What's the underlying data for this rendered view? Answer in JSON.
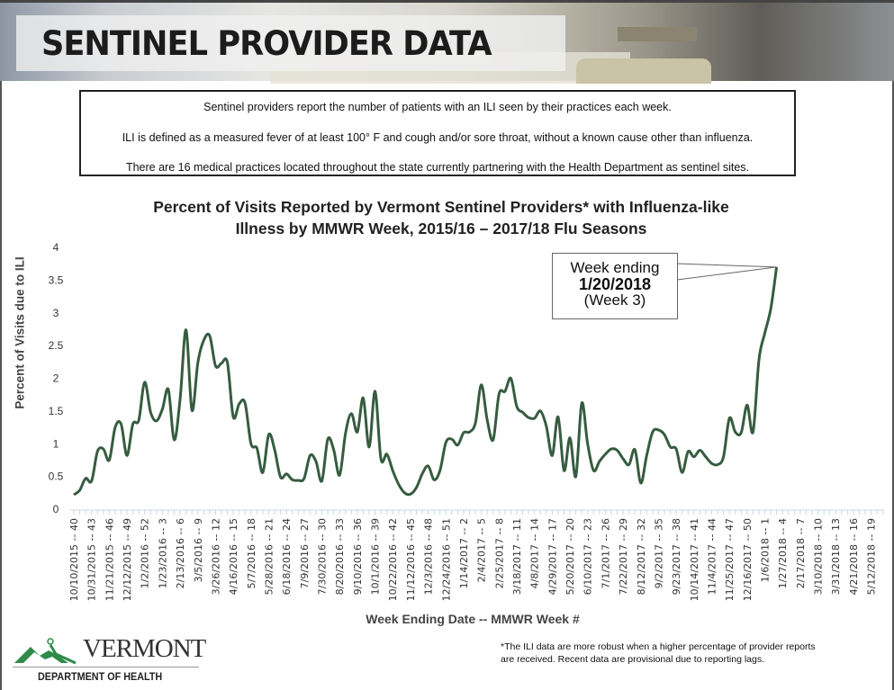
{
  "header": {
    "title": "SENTINEL PROVIDER DATA"
  },
  "info": {
    "lines": [
      "Sentinel providers report the number of patients with an ILI seen by their practices each week.",
      "ILI is defined as a measured fever of at least 100° F and cough and/or sore throat, without a known cause other than influenza.",
      "There are 16 medical practices located throughout the state currently partnering with the Health Department as sentinel sites."
    ]
  },
  "chart_data": {
    "type": "line",
    "title_line1": "Percent of Visits Reported by Vermont Sentinel Providers* with Influenza-like",
    "title_line2": "Illness by MMWR Week, 2015/16 – 2017/18 Flu Seasons",
    "xlabel": "Week Ending Date -- MMWR Week #",
    "ylabel": "Percent of Visits due to ILI",
    "ylim": [
      0,
      4
    ],
    "yticks": [
      "0",
      "0.5",
      "1",
      "1.5",
      "2",
      "2.5",
      "3",
      "3.5",
      "4"
    ],
    "xlim": [
      "10/10/2015",
      "5/19/2018"
    ],
    "grid": false,
    "line_color": "#365c40",
    "xtick_labels": [
      "10/10/2015 -- 40",
      "10/31/2015 -- 43",
      "11/21/2015 -- 46",
      "12/12/2015 -- 49",
      "1/2/2016 -- 52",
      "1/23/2016 -- 3",
      "2/13/2016 -- 6",
      "3/5/2016 -- 9",
      "3/26/2016 -- 12",
      "4/16/2016 -- 15",
      "5/7/2016 -- 18",
      "5/28/2016 -- 21",
      "6/18/2016 -- 24",
      "7/9/2016 -- 27",
      "7/30/2016 -- 30",
      "8/20/2016 -- 33",
      "9/10/2016 -- 36",
      "10/1/2016 -- 39",
      "10/22/2016 -- 42",
      "11/12/2016 -- 45",
      "12/3/2016 -- 48",
      "12/24/2016 -- 51",
      "1/14/2017 -- 2",
      "2/4/2017 -- 5",
      "2/25/2017 -- 8",
      "3/18/2017 -- 11",
      "4/8/2017 -- 14",
      "4/29/2017 -- 17",
      "5/20/2017 -- 20",
      "6/10/2017 -- 23",
      "7/1/2017 -- 26",
      "7/22/2017 -- 29",
      "8/12/2017 -- 32",
      "9/2/2017 -- 35",
      "9/23/2017 -- 38",
      "10/14/2017 -- 41",
      "11/4/2017 -- 44",
      "11/25/2017 -- 47",
      "12/16/2017 -- 50",
      "1/6/2018 -- 1",
      "1/27/2018 -- 4",
      "2/17/2018 -- 7",
      "3/10/2018 -- 10",
      "3/31/2018 -- 13",
      "4/21/2018 -- 16",
      "5/12/2018 -- 19"
    ],
    "x": [
      "10/10/2015",
      "10/17/2015",
      "10/24/2015",
      "10/31/2015",
      "11/7/2015",
      "11/14/2015",
      "11/21/2015",
      "11/28/2015",
      "12/5/2015",
      "12/12/2015",
      "12/19/2015",
      "12/26/2015",
      "1/2/2016",
      "1/9/2016",
      "1/16/2016",
      "1/23/2016",
      "1/30/2016",
      "2/6/2016",
      "2/13/2016",
      "2/20/2016",
      "2/27/2016",
      "3/5/2016",
      "3/12/2016",
      "3/19/2016",
      "3/26/2016",
      "4/2/2016",
      "4/9/2016",
      "4/16/2016",
      "4/23/2016",
      "4/30/2016",
      "5/7/2016",
      "5/14/2016",
      "5/21/2016",
      "5/28/2016",
      "6/4/2016",
      "6/11/2016",
      "6/18/2016",
      "6/25/2016",
      "7/2/2016",
      "7/9/2016",
      "7/16/2016",
      "7/23/2016",
      "7/30/2016",
      "8/6/2016",
      "8/13/2016",
      "8/20/2016",
      "8/27/2016",
      "9/3/2016",
      "9/10/2016",
      "9/17/2016",
      "9/24/2016",
      "10/1/2016",
      "10/8/2016",
      "10/15/2016",
      "10/22/2016",
      "10/29/2016",
      "11/5/2016",
      "11/12/2016",
      "11/19/2016",
      "11/26/2016",
      "12/3/2016",
      "12/10/2016",
      "12/17/2016",
      "12/24/2016",
      "12/31/2016",
      "1/7/2017",
      "1/14/2017",
      "1/21/2017",
      "1/28/2017",
      "2/4/2017",
      "2/11/2017",
      "2/18/2017",
      "2/25/2017",
      "3/4/2017",
      "3/11/2017",
      "3/18/2017",
      "3/25/2017",
      "4/1/2017",
      "4/8/2017",
      "4/15/2017",
      "4/22/2017",
      "4/29/2017",
      "5/6/2017",
      "5/13/2017",
      "5/20/2017",
      "5/27/2017",
      "6/3/2017",
      "6/10/2017",
      "6/17/2017",
      "6/24/2017",
      "7/1/2017",
      "7/8/2017",
      "7/15/2017",
      "7/22/2017",
      "7/29/2017",
      "8/5/2017",
      "8/12/2017",
      "8/19/2017",
      "8/26/2017",
      "9/2/2017",
      "9/9/2017",
      "9/16/2017",
      "9/23/2017",
      "9/30/2017",
      "10/7/2017",
      "10/14/2017",
      "10/21/2017",
      "10/28/2017",
      "11/4/2017",
      "11/11/2017",
      "11/18/2017",
      "11/25/2017",
      "12/2/2017",
      "12/9/2017",
      "12/16/2017",
      "12/23/2017",
      "12/30/2017",
      "1/6/2018",
      "1/13/2018",
      "1/20/2018"
    ],
    "values": [
      0.22,
      0.29,
      0.47,
      0.43,
      0.88,
      0.92,
      0.75,
      1.25,
      1.3,
      0.82,
      1.3,
      1.36,
      1.94,
      1.48,
      1.35,
      1.53,
      1.83,
      1.06,
      1.69,
      2.74,
      1.51,
      2.24,
      2.58,
      2.65,
      2.19,
      2.23,
      2.24,
      1.41,
      1.61,
      1.62,
      1.0,
      0.93,
      0.56,
      1.14,
      0.91,
      0.49,
      0.54,
      0.45,
      0.44,
      0.47,
      0.82,
      0.73,
      0.43,
      1.07,
      0.91,
      0.52,
      1.16,
      1.46,
      1.18,
      1.7,
      0.95,
      1.8,
      0.77,
      0.84,
      0.59,
      0.38,
      0.25,
      0.23,
      0.33,
      0.54,
      0.66,
      0.45,
      0.59,
      1.02,
      1.07,
      0.98,
      1.17,
      1.18,
      1.32,
      1.9,
      1.36,
      1.06,
      1.76,
      1.8,
      2.0,
      1.57,
      1.48,
      1.4,
      1.39,
      1.5,
      1.27,
      0.82,
      1.41,
      0.59,
      1.09,
      0.5,
      1.62,
      1.0,
      0.59,
      0.73,
      0.84,
      0.92,
      0.9,
      0.77,
      0.68,
      0.91,
      0.4,
      0.82,
      1.18,
      1.21,
      1.14,
      0.95,
      0.92,
      0.56,
      0.88,
      0.8,
      0.9,
      0.8,
      0.7,
      0.68,
      0.8,
      1.39,
      1.18,
      1.17,
      1.59,
      1.18,
      2.28,
      2.69,
      3.06,
      3.7
    ],
    "annotation": {
      "line1": "Week ending",
      "line2": "1/20/2018",
      "line3": "(Week 3)"
    }
  },
  "footer": {
    "logo_text": "VERMONT",
    "logo_subtext": "DEPARTMENT OF HEALTH",
    "note_line1": "*The ILI data are more robust when a higher percentage of provider reports",
    "note_line2": "are received. Recent data are provisional due to reporting lags."
  }
}
